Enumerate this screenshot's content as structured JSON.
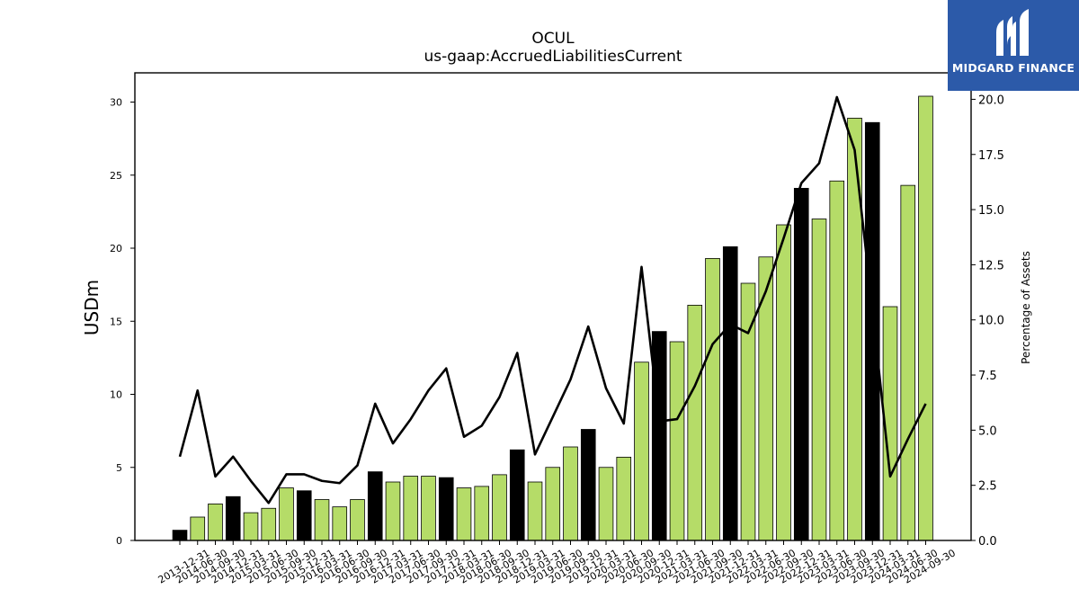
{
  "chart_data": {
    "type": "bar",
    "title": "OCUL",
    "subtitle": "us-gaap:AccruedLiabilitiesCurrent",
    "ylabel": "USDm",
    "y2label": "Percentage of Assets",
    "ylim": [
      0,
      32
    ],
    "y2lim": [
      0,
      21.2
    ],
    "yticks": [
      0,
      5,
      10,
      15,
      20,
      25,
      30
    ],
    "y2ticks": [
      "0.0",
      "2.5",
      "5.0",
      "7.5",
      "10.0",
      "12.5",
      "15.0",
      "17.5",
      "20.0"
    ],
    "categories": [
      "2013-12-31",
      "2014-06-30",
      "2014-09-30",
      "2014-12-31",
      "2015-03-31",
      "2015-06-30",
      "2015-09-30",
      "2015-12-31",
      "2016-03-31",
      "2016-06-30",
      "2016-09-30",
      "2016-12-31",
      "2017-03-31",
      "2017-06-30",
      "2017-09-30",
      "2017-12-31",
      "2018-03-31",
      "2018-06-30",
      "2018-09-30",
      "2018-12-31",
      "2019-03-31",
      "2019-06-30",
      "2019-09-30",
      "2019-12-31",
      "2020-03-31",
      "2020-06-30",
      "2020-09-30",
      "2020-12-31",
      "2021-03-31",
      "2021-06-30",
      "2021-09-30",
      "2021-12-31",
      "2022-03-31",
      "2022-06-30",
      "2022-09-30",
      "2022-12-31",
      "2023-03-31",
      "2023-06-30",
      "2023-09-30",
      "2023-12-31",
      "2024-03-31",
      "2024-06-30",
      "2024-09-30"
    ],
    "series": [
      {
        "type": "bar",
        "values": [
          0.7,
          1.6,
          2.5,
          3.0,
          1.9,
          2.2,
          3.6,
          3.4,
          2.8,
          2.3,
          2.8,
          4.7,
          4.0,
          4.4,
          4.4,
          4.3,
          3.6,
          3.7,
          4.5,
          6.2,
          4.0,
          5.0,
          6.4,
          7.6,
          5.0,
          5.7,
          12.2,
          14.3,
          13.6,
          16.1,
          19.3,
          20.1,
          17.6,
          19.4,
          21.6,
          24.1,
          22.0,
          24.6,
          28.9,
          28.6,
          16.0,
          24.3,
          30.4
        ],
        "highlight": [
          true,
          false,
          false,
          true,
          false,
          false,
          false,
          true,
          false,
          false,
          false,
          true,
          false,
          false,
          false,
          true,
          false,
          false,
          false,
          true,
          false,
          false,
          false,
          true,
          false,
          false,
          false,
          true,
          false,
          false,
          false,
          true,
          false,
          false,
          false,
          true,
          false,
          false,
          false,
          true,
          false,
          false,
          false
        ]
      },
      {
        "type": "line",
        "axis": "right",
        "values": [
          3.8,
          6.8,
          2.9,
          3.8,
          2.7,
          1.7,
          3.0,
          3.0,
          2.7,
          2.6,
          3.4,
          6.2,
          4.4,
          5.5,
          6.8,
          7.8,
          4.7,
          5.2,
          6.5,
          8.5,
          3.9,
          5.6,
          7.3,
          9.7,
          6.9,
          5.3,
          12.4,
          5.4,
          5.5,
          7.0,
          8.9,
          9.8,
          9.4,
          11.3,
          13.7,
          16.2,
          17.1,
          20.1,
          17.7,
          10.5,
          2.9,
          4.6,
          6.2
        ]
      }
    ],
    "colors": {
      "bar": "#b5dc68",
      "bar_highlight": "#000000",
      "line": "#000000",
      "logo_bg": "#2c5aa9"
    },
    "grid": false,
    "legend": "none"
  },
  "logo": {
    "text": "MIDGARD FINANCE",
    "icon": "midgard-logo-icon"
  }
}
